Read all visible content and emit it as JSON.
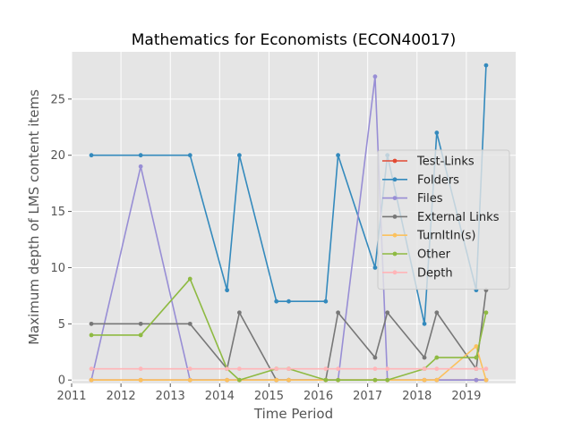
{
  "chart_data": {
    "type": "line",
    "title": "Mathematics for Economists (ECON40017)",
    "xlabel": "Time Period",
    "ylabel": "Maximum depth of LMS content items",
    "xlim": [
      2011.0,
      2020.0
    ],
    "ylim": [
      -0.3,
      29.2
    ],
    "x_ticks": [
      2011,
      2012,
      2013,
      2014,
      2015,
      2016,
      2017,
      2018,
      2019
    ],
    "y_ticks": [
      0,
      5,
      10,
      15,
      20,
      25
    ],
    "grid": true,
    "legend_position": "center-right",
    "x": [
      2011.4,
      2012.4,
      2013.4,
      2014.15,
      2014.4,
      2015.15,
      2015.4,
      2016.15,
      2016.4,
      2017.15,
      2017.4,
      2018.15,
      2018.4,
      2019.2,
      2019.4
    ],
    "series": [
      {
        "name": "Test-Links",
        "color": "#E24A33",
        "values": [
          0,
          0,
          0,
          0,
          0,
          0,
          0,
          0,
          0,
          0,
          0,
          0,
          0,
          0,
          0
        ]
      },
      {
        "name": "Folders",
        "color": "#348ABD",
        "values": [
          20,
          20,
          20,
          8,
          20,
          7,
          7,
          7,
          20,
          10,
          20,
          5,
          22,
          8,
          28
        ]
      },
      {
        "name": "Files",
        "color": "#988ED5",
        "values": [
          0,
          19,
          0,
          0,
          0,
          0,
          0,
          0,
          0,
          27,
          0,
          0,
          0,
          0,
          0
        ]
      },
      {
        "name": "External Links",
        "color": "#777777",
        "values": [
          5,
          5,
          5,
          1,
          6,
          0,
          0,
          0,
          6,
          2,
          6,
          2,
          6,
          1,
          8
        ]
      },
      {
        "name": "TurnItIn(s)",
        "color": "#FBC15E",
        "values": [
          0,
          0,
          0,
          0,
          0,
          0,
          0,
          0,
          0,
          0,
          0,
          0,
          0,
          3,
          0
        ]
      },
      {
        "name": "Other",
        "color": "#8EBA42",
        "values": [
          4,
          4,
          9,
          1,
          0,
          1,
          1,
          0,
          0,
          0,
          0,
          1,
          2,
          2,
          6
        ]
      },
      {
        "name": "Depth",
        "color": "#FFB5B8",
        "values": [
          1,
          1,
          1,
          1,
          1,
          1,
          1,
          1,
          1,
          1,
          1,
          1,
          1,
          1,
          1
        ]
      }
    ]
  }
}
